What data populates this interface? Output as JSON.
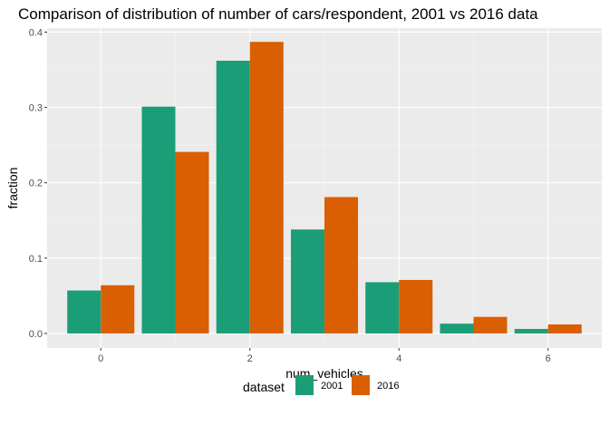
{
  "chart_data": {
    "type": "bar",
    "title": "Comparison of distribution of number of cars/respondent, 2001 vs 2016 data",
    "xlabel": "num_vehicles",
    "ylabel": "fraction",
    "x": [
      0,
      1,
      2,
      3,
      4,
      5,
      6
    ],
    "x_ticks": [
      0,
      2,
      4,
      6
    ],
    "x_tick_labels": [
      "0",
      "2",
      "4",
      "6"
    ],
    "xlim": [
      -0.72,
      6.72
    ],
    "y_ticks": [
      0.0,
      0.1,
      0.2,
      0.3,
      0.4
    ],
    "y_tick_labels": [
      "0.0",
      "0.1",
      "0.2",
      "0.3",
      "0.4"
    ],
    "ylim": [
      -0.0193,
      0.4053
    ],
    "grid": true,
    "legend": {
      "title": "dataset",
      "position": "bottom"
    },
    "series": [
      {
        "name": "2001",
        "color": "#1b9e77",
        "values": [
          0.057,
          0.301,
          0.362,
          0.138,
          0.068,
          0.013,
          0.006
        ]
      },
      {
        "name": "2016",
        "color": "#d95f02",
        "values": [
          0.064,
          0.241,
          0.387,
          0.181,
          0.071,
          0.022,
          0.012
        ]
      }
    ]
  }
}
